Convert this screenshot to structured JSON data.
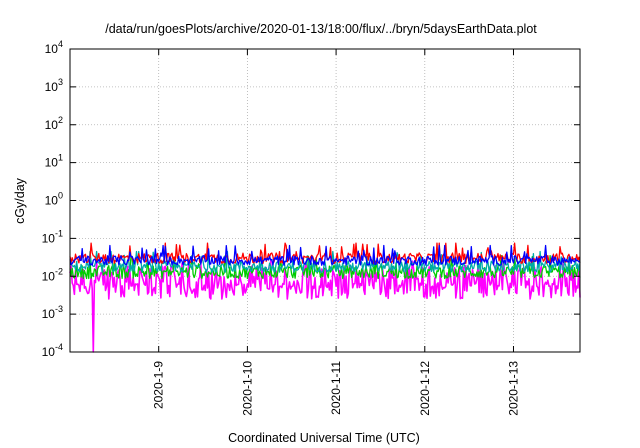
{
  "chart_data": {
    "type": "line",
    "title": "/data/run/goesPlots/archive/2020-01-13/18:00/flux/../bryn/5daysEarthData.plot",
    "xlabel": "Coordinated Universal Time (UTC)",
    "ylabel": "cGy/day",
    "yscale": "log",
    "ylim": [
      0.0001,
      10000
    ],
    "xlim": [
      0,
      5.75
    ],
    "x_unit": "days since 2020-01-08 00:00 UTC",
    "y_ticks": [
      {
        "value": 0.0001,
        "base": "10",
        "exp": "-4"
      },
      {
        "value": 0.001,
        "base": "10",
        "exp": "-3"
      },
      {
        "value": 0.01,
        "base": "10",
        "exp": "-2"
      },
      {
        "value": 0.1,
        "base": "10",
        "exp": "-1"
      },
      {
        "value": 1,
        "base": "10",
        "exp": "0"
      },
      {
        "value": 10,
        "base": "10",
        "exp": "1"
      },
      {
        "value": 100,
        "base": "10",
        "exp": "2"
      },
      {
        "value": 1000,
        "base": "10",
        "exp": "3"
      },
      {
        "value": 10000,
        "base": "10",
        "exp": "4"
      }
    ],
    "x_ticks": [
      {
        "value": 1,
        "label": "2020-1-9"
      },
      {
        "value": 2,
        "label": "2020-1-10"
      },
      {
        "value": 3,
        "label": "2020-1-11"
      },
      {
        "value": 4,
        "label": "2020-1-12"
      },
      {
        "value": 5,
        "label": "2020-1-13"
      }
    ],
    "grid": true,
    "legend": "none",
    "series": [
      {
        "color": "#ff0000",
        "base": 0.03,
        "spread": 0.28,
        "spike_max": 0.075
      },
      {
        "color": "#0000ff",
        "base": 0.026,
        "spread": 0.25,
        "spike_max": 0.065
      },
      {
        "color": "#00aaaa",
        "base": 0.018,
        "spread": 0.3,
        "spike_max": 0.045
      },
      {
        "color": "#00cc00",
        "base": 0.013,
        "spread": 0.35,
        "spike_max": 0.035
      },
      {
        "color": "#ff00ff",
        "base": 0.01,
        "spread": 0.55,
        "spike_max": 0.025,
        "min": 0.0025,
        "dropout_x": 0.26
      }
    ]
  }
}
